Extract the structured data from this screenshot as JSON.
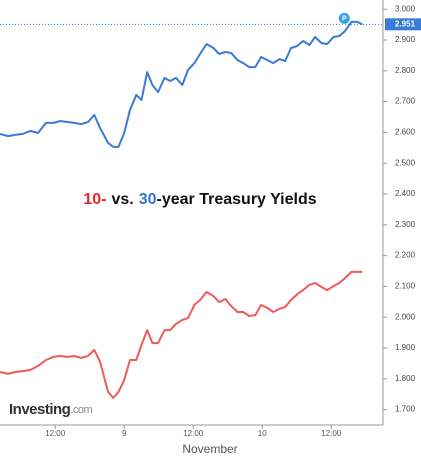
{
  "chart_data": {
    "type": "line",
    "title_parts": [
      {
        "text": "10-",
        "color": "#e8262a"
      },
      {
        "text": "vs.",
        "color": "#111111"
      },
      {
        "text": "30",
        "color": "#2f78c8"
      },
      {
        "text": "-year Treasury Yields",
        "color": "#111111"
      }
    ],
    "x_label": "November",
    "watermark": [
      "Investing",
      ".com"
    ],
    "badge": "P",
    "x": [
      2.4,
      3.8,
      5.0,
      6.3,
      7.7,
      9.0,
      10.4,
      11.7,
      12.9,
      14.1,
      15.3,
      16.5,
      17.7,
      18.8,
      19.8,
      21.2,
      22.1,
      23.0,
      24.0,
      25.0,
      26.1,
      27.0,
      28.0,
      28.9,
      29.9,
      31.0,
      32.0,
      33.0,
      34.1,
      35.1,
      36.2,
      37.2,
      38.3,
      39.5,
      40.5,
      41.6,
      42.6,
      43.7,
      44.7,
      45.7,
      46.8,
      47.8,
      48.9,
      49.9,
      51.0,
      52.0,
      53.0,
      54.1,
      55.1,
      56.2,
      57.2,
      58.3,
      59.3,
      60.4,
      61.4,
      62.4,
      63.5,
      64.5,
      65.4
    ],
    "series": [
      {
        "name": "30-year",
        "color": "#3a7bd5",
        "values": [
          2.595,
          2.588,
          2.592,
          2.595,
          2.605,
          2.598,
          2.631,
          2.631,
          2.637,
          2.634,
          2.631,
          2.627,
          2.634,
          2.657,
          2.614,
          2.566,
          2.553,
          2.553,
          2.598,
          2.673,
          2.722,
          2.705,
          2.796,
          2.754,
          2.731,
          2.777,
          2.767,
          2.777,
          2.754,
          2.803,
          2.825,
          2.855,
          2.887,
          2.874,
          2.855,
          2.861,
          2.858,
          2.835,
          2.825,
          2.812,
          2.812,
          2.845,
          2.835,
          2.825,
          2.838,
          2.832,
          2.874,
          2.881,
          2.897,
          2.884,
          2.91,
          2.89,
          2.887,
          2.91,
          2.913,
          2.929,
          2.959,
          2.959,
          2.951
        ]
      },
      {
        "name": "10-year",
        "color": "#f05a5a",
        "values": [
          1.822,
          1.816,
          1.822,
          1.825,
          1.829,
          1.842,
          1.861,
          1.871,
          1.874,
          1.871,
          1.874,
          1.868,
          1.874,
          1.894,
          1.855,
          1.757,
          1.738,
          1.757,
          1.796,
          1.861,
          1.861,
          1.91,
          1.958,
          1.916,
          1.916,
          1.958,
          1.958,
          1.978,
          1.991,
          1.997,
          2.04,
          2.056,
          2.082,
          2.069,
          2.049,
          2.059,
          2.036,
          2.017,
          2.017,
          2.004,
          2.007,
          2.04,
          2.03,
          2.017,
          2.027,
          2.033,
          2.056,
          2.075,
          2.088,
          2.105,
          2.111,
          2.098,
          2.088,
          2.101,
          2.111,
          2.127,
          2.147,
          2.147,
          2.147
        ]
      }
    ],
    "xlim": [
      2.4,
      69
    ],
    "xticks": [
      {
        "value": 12,
        "label": "12:00"
      },
      {
        "value": 24,
        "label": "9"
      },
      {
        "value": 36,
        "label": "12:00"
      },
      {
        "value": 48,
        "label": "10"
      },
      {
        "value": 60,
        "label": "12:00"
      }
    ],
    "ylim": [
      1.65,
      3.03
    ],
    "yticks": [
      {
        "value": 1.7,
        "label": "1.700"
      },
      {
        "value": 1.8,
        "label": "1.800"
      },
      {
        "value": 1.9,
        "label": "1.900"
      },
      {
        "value": 2.0,
        "label": "2.000"
      },
      {
        "value": 2.1,
        "label": "2.100"
      },
      {
        "value": 2.2,
        "label": "2.200"
      },
      {
        "value": 2.3,
        "label": "2.300"
      },
      {
        "value": 2.4,
        "label": "2.400"
      },
      {
        "value": 2.5,
        "label": "2.500"
      },
      {
        "value": 2.6,
        "label": "2.600"
      },
      {
        "value": 2.7,
        "label": "2.700"
      },
      {
        "value": 2.8,
        "label": "2.800"
      },
      {
        "value": 2.9,
        "label": "2.900"
      },
      {
        "value": 3.0,
        "label": "3.000"
      }
    ]
  }
}
